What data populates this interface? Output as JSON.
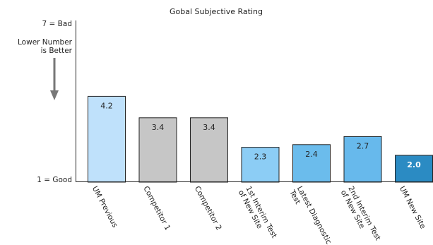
{
  "chart_data": {
    "type": "bar",
    "title": "Gobal Subjective Rating",
    "ylabel": "",
    "xlabel": "",
    "ylim": [
      1,
      7
    ],
    "y_top_label": "7 = Bad",
    "y_bottom_label": "1 = Good",
    "y_note_line1": "Lower Number",
    "y_note_line2": "is Better",
    "categories": [
      [
        "UM Previous"
      ],
      [
        "Competitor 1"
      ],
      [
        "Competitor 2"
      ],
      [
        "1st Interim Test",
        "of New Site"
      ],
      [
        "Latest Diagnostic",
        "Test"
      ],
      [
        "2nd Interim Test",
        "of New Site"
      ],
      [
        "UM New Site"
      ]
    ],
    "values": [
      4.2,
      3.4,
      3.4,
      2.3,
      2.4,
      2.7,
      2.0
    ],
    "value_labels": [
      "4.2",
      "3.4",
      "3.4",
      "2.3",
      "2.4",
      "2.7",
      "2.0"
    ],
    "colors": [
      "#bfe1fb",
      "#c6c6c6",
      "#c6c6c6",
      "#8ccdf5",
      "#6bbcec",
      "#67b9ec",
      "#2b8bc3"
    ],
    "grid": false,
    "legend": "none"
  }
}
